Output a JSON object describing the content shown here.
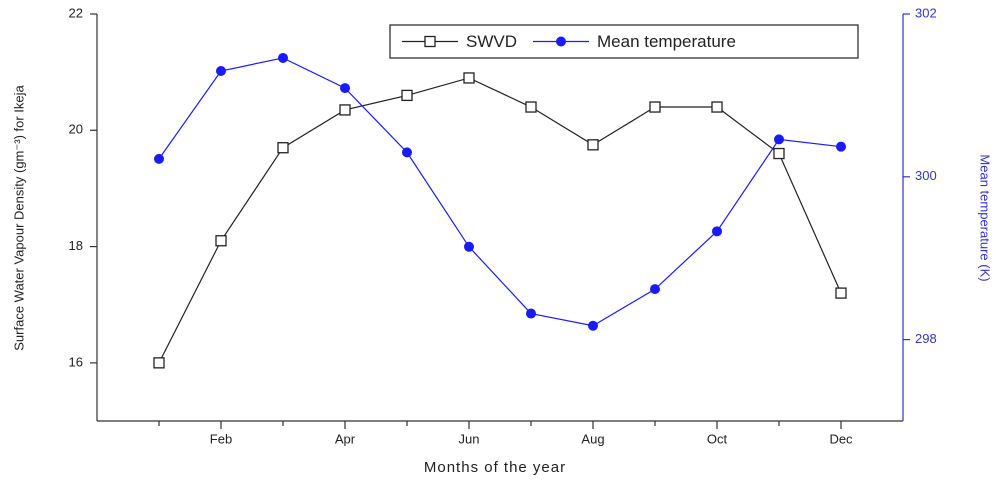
{
  "chart_data": {
    "type": "line",
    "x_label": "Months of the year",
    "y_label": "Surface Water Vapour Density (gm⁻³) for Ikeja",
    "y2_label": "Mean temperature (K)",
    "categories": [
      null,
      "Feb",
      null,
      "Apr",
      null,
      "Jun",
      null,
      "Aug",
      null,
      "Oct",
      null,
      "Dec"
    ],
    "ylim": [
      15,
      22
    ],
    "yticks": [
      16,
      18,
      20,
      22
    ],
    "y2lim": [
      297,
      302
    ],
    "y2ticks": [
      298,
      300,
      302
    ],
    "y2color": "#3333cc",
    "legend": "upper right",
    "series": [
      {
        "name": "SWVD",
        "color": "#222222",
        "marker": "open-square",
        "values": [
          16.0,
          18.1,
          19.7,
          20.35,
          20.6,
          20.9,
          20.4,
          19.75,
          20.4,
          20.4,
          19.6,
          17.2
        ]
      },
      {
        "name": "Mean temperature",
        "color": "#1a1aff",
        "marker": "filled-circle",
        "axis": "y2",
        "values": [
          300.22,
          301.3,
          301.46,
          301.09,
          300.3,
          299.14,
          298.32,
          298.17,
          298.62,
          299.33,
          300.46,
          300.37
        ]
      }
    ]
  }
}
